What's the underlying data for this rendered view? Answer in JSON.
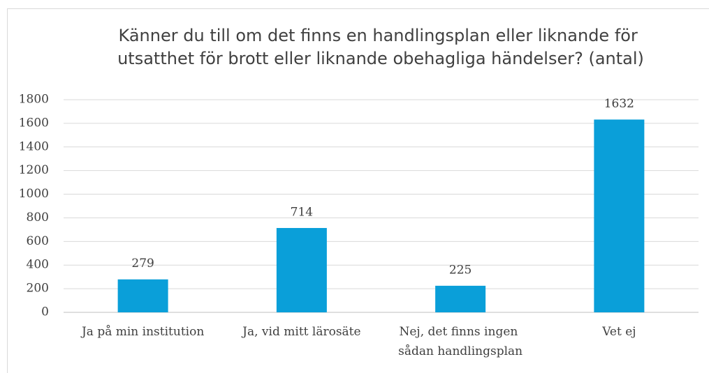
{
  "chart_data": {
    "type": "bar",
    "title": "Känner du till om det finns en handlingsplan eller liknande för utsatthet för brott eller liknande obehagliga händelser? (antal)",
    "categories": [
      "Ja på min institution",
      "Ja, vid mitt lärosäte",
      "Nej, det finns ingen sådan handlingsplan",
      "Vet ej"
    ],
    "values": [
      279,
      714,
      225,
      1632
    ],
    "color": "#0a9fd9",
    "ylim": [
      0,
      1800
    ],
    "yticks": [
      0,
      200,
      400,
      600,
      800,
      1000,
      1200,
      1400,
      1600,
      1800
    ],
    "grid": true
  }
}
